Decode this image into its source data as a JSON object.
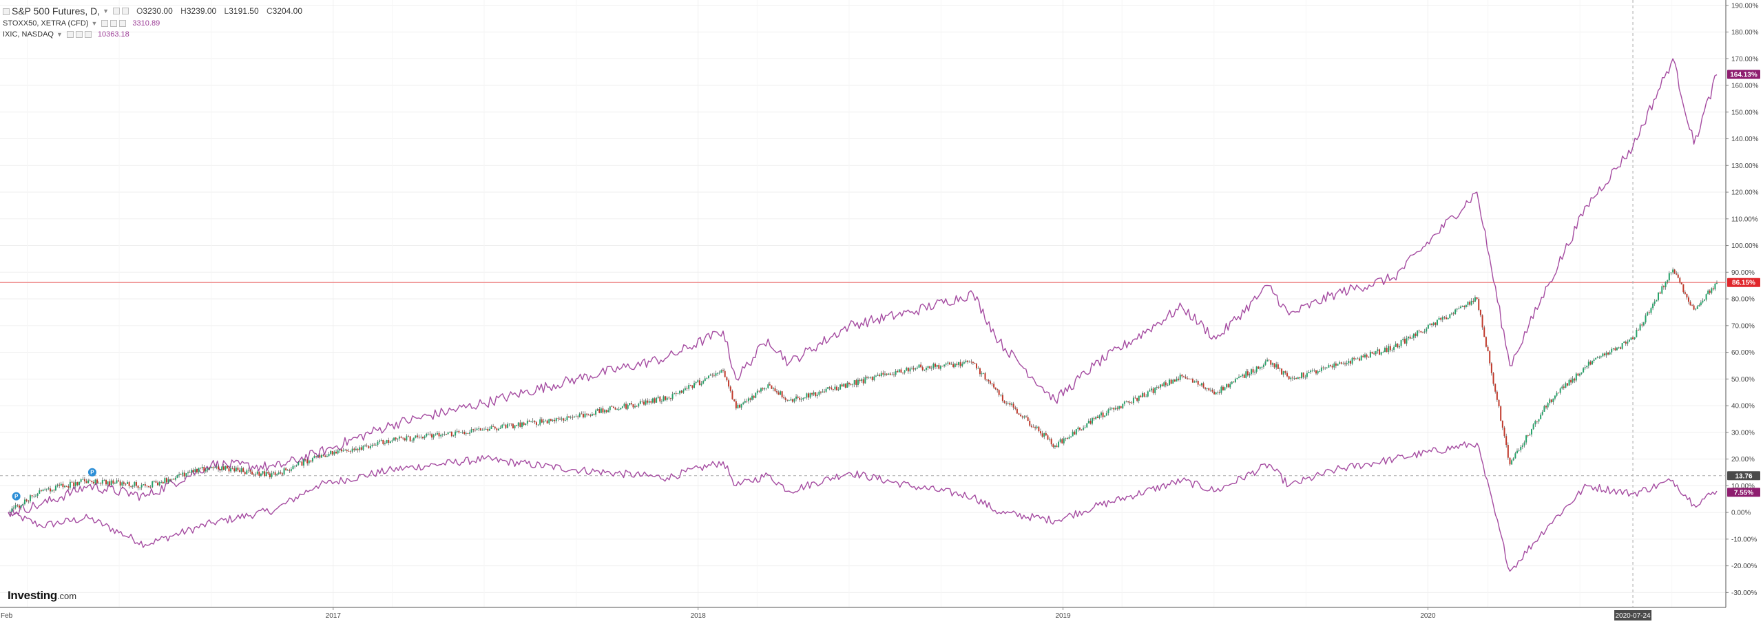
{
  "legend": {
    "main_symbol": "S&P 500 Futures, D,",
    "open_label": "O",
    "open": "3230.00",
    "high_label": "H",
    "high": "3239.00",
    "low_label": "L",
    "low": "3191.50",
    "close_label": "C",
    "close": "3204.00",
    "compare": [
      {
        "symbol": "STOXX50, XETRA (CFD)",
        "value": "3310.89"
      },
      {
        "symbol": "IXIC, NASDAQ",
        "value": "10363.18"
      }
    ]
  },
  "logo": {
    "brand": "Investing",
    "suffix": ".com"
  },
  "colors": {
    "up": "#26a36a",
    "down": "#c0392b",
    "compare": "#a54ca1",
    "ref_line": "#ef8f8f",
    "grid": "#efefef"
  },
  "chart_data": {
    "type": "line",
    "title": "S&P 500 Futures, D,",
    "xlabel": "",
    "ylabel": "",
    "x_tick_labels": [
      "Feb",
      "2017",
      "2018",
      "2019",
      "2020"
    ],
    "crosshair_x_label": "2020-07-24",
    "y_tick_labels": [
      "-30.00%",
      "-20.00%",
      "-10.00%",
      "0.00%",
      "10.00%",
      "20.00%",
      "30.00%",
      "40.00%",
      "50.00%",
      "60.00%",
      "70.00%",
      "80.00%",
      "90.00%",
      "100.00%",
      "110.00%",
      "120.00%",
      "130.00%",
      "140.00%",
      "150.00%",
      "160.00%",
      "170.00%",
      "180.00%",
      "190.00%"
    ],
    "ylim": [
      -33,
      192
    ],
    "y_unit": "%",
    "x_dates": [
      "2016-02-11",
      "2016-03-15",
      "2016-05-01",
      "2016-06-27",
      "2016-09-01",
      "2016-11-04",
      "2016-12-15",
      "2017-03-01",
      "2017-06-01",
      "2017-09-01",
      "2017-12-01",
      "2018-01-26",
      "2018-02-08",
      "2018-03-12",
      "2018-04-02",
      "2018-06-01",
      "2018-08-01",
      "2018-10-03",
      "2018-10-29",
      "2018-12-24",
      "2019-02-01",
      "2019-04-30",
      "2019-06-03",
      "2019-07-26",
      "2019-08-15",
      "2019-10-01",
      "2019-11-28",
      "2020-02-19",
      "2020-03-23",
      "2020-04-30",
      "2020-06-08",
      "2020-07-24",
      "2020-09-02",
      "2020-09-23",
      "2020-10-16"
    ],
    "series": [
      {
        "name": "S&P 500 Futures",
        "style": "candlestick",
        "color_up": "#26a36a",
        "color_down": "#c0392b",
        "values": [
          0,
          8,
          12,
          10,
          17,
          14,
          21,
          27,
          31,
          36,
          43,
          53,
          39,
          48,
          42,
          48,
          54,
          56,
          44,
          25,
          35,
          51,
          45,
          57,
          50,
          55,
          62,
          80,
          18,
          41,
          55,
          65,
          91,
          76,
          86
        ]
      },
      {
        "name": "STOXX50, XETRA (CFD)",
        "style": "line",
        "color": "#a54ca1",
        "values": [
          0,
          -5,
          -2,
          -12,
          -4,
          1,
          10,
          16,
          20,
          16,
          13,
          19,
          10,
          14,
          8,
          15,
          10,
          6,
          0,
          -3,
          2,
          12,
          8,
          18,
          10,
          16,
          20,
          26,
          -22,
          -5,
          10,
          7,
          12,
          3,
          8
        ]
      },
      {
        "name": "IXIC, NASDAQ",
        "style": "line",
        "color": "#a54ca1",
        "values": [
          0,
          3,
          10,
          6,
          18,
          17,
          22,
          33,
          41,
          50,
          58,
          68,
          50,
          65,
          56,
          70,
          75,
          82,
          64,
          42,
          55,
          77,
          65,
          85,
          74,
          82,
          88,
          120,
          55,
          85,
          115,
          137,
          170,
          138,
          164
        ]
      }
    ],
    "price_labels": [
      {
        "text": "164.13%",
        "value": 164.13,
        "bg": "#8e1d6f"
      },
      {
        "text": "86.15%",
        "value": 86.15,
        "bg": "#e0262b"
      },
      {
        "text": "13.76",
        "value": 13.76,
        "bg": "#4a4a4a"
      },
      {
        "text": "7.55%",
        "value": 7.55,
        "bg": "#8e1d6f"
      }
    ],
    "horizontal_ref_value": 86.15,
    "crosshair_y_value": 13.76,
    "markers": [
      {
        "date": "2016-02-19",
        "value": 4,
        "label": "P"
      },
      {
        "date": "2016-05-05",
        "value": 13,
        "label": "P"
      }
    ],
    "grid": true,
    "legend_position": "top-left"
  }
}
